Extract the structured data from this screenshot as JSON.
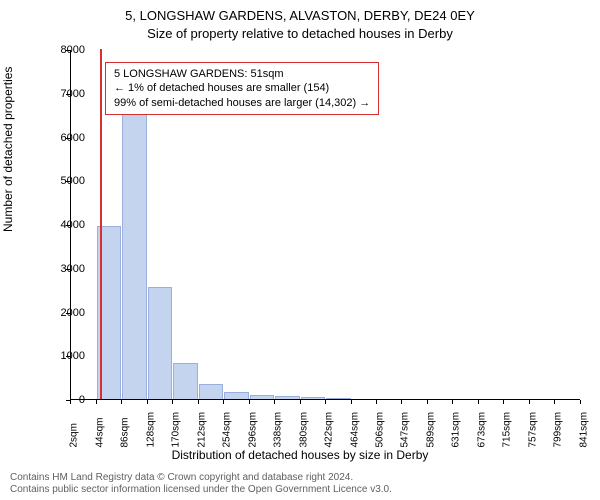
{
  "title_main": "5, LONGSHAW GARDENS, ALVASTON, DERBY, DE24 0EY",
  "title_sub": "Size of property relative to detached houses in Derby",
  "y_label": "Number of detached properties",
  "x_label": "Distribution of detached houses by size in Derby",
  "chart": {
    "type": "histogram",
    "bar_color": "#c5d4ee",
    "bar_border": "#9aafdb",
    "marker_color": "#d83030",
    "background_color": "#ffffff",
    "annotation_border": "#d83030",
    "y_ticks": [
      0,
      1000,
      2000,
      3000,
      4000,
      5000,
      6000,
      7000,
      8000
    ],
    "ylim": [
      0,
      8000
    ],
    "x_ticks": [
      "2sqm",
      "44sqm",
      "86sqm",
      "128sqm",
      "170sqm",
      "212sqm",
      "254sqm",
      "296sqm",
      "338sqm",
      "380sqm",
      "422sqm",
      "464sqm",
      "506sqm",
      "547sqm",
      "589sqm",
      "631sqm",
      "673sqm",
      "715sqm",
      "757sqm",
      "799sqm",
      "841sqm"
    ],
    "x_min": 2,
    "x_max": 841,
    "bars": [
      {
        "x": 44,
        "count": 3950
      },
      {
        "x": 86,
        "count": 6700
      },
      {
        "x": 128,
        "count": 2550
      },
      {
        "x": 170,
        "count": 820
      },
      {
        "x": 212,
        "count": 350
      },
      {
        "x": 254,
        "count": 170
      },
      {
        "x": 296,
        "count": 100
      },
      {
        "x": 338,
        "count": 60
      },
      {
        "x": 380,
        "count": 40
      },
      {
        "x": 422,
        "count": 10
      }
    ],
    "bar_width_sqm": 42,
    "marker_x": 51
  },
  "annotation": {
    "line1": "5 LONGSHAW GARDENS: 51sqm",
    "line2": "← 1% of detached houses are smaller (154)",
    "line3": "99% of semi-detached houses are larger (14,302) →"
  },
  "footer": {
    "line1": "Contains HM Land Registry data © Crown copyright and database right 2024.",
    "line2": "Contains public sector information licensed under the Open Government Licence v3.0."
  }
}
